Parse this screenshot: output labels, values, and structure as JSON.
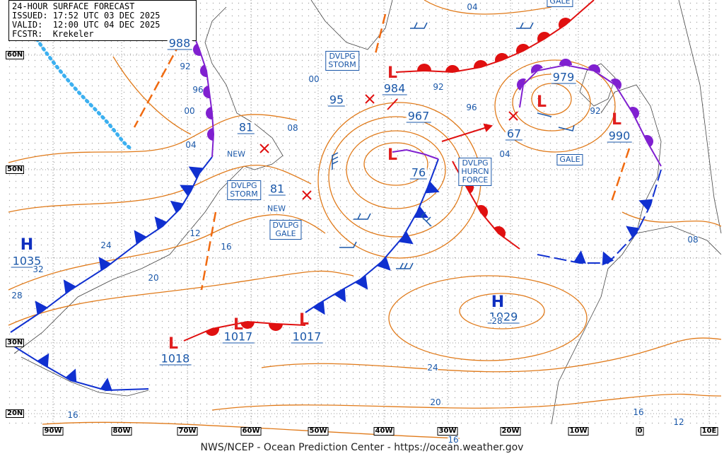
{
  "header": {
    "title": "24-HOUR SURFACE FORECAST",
    "issued": "ISSUED: 17:52 UTC 03 DEC 2025",
    "valid": "VALID:  12:00 UTC 04 DEC 2025",
    "forecaster": "FCSTR:  Krekeler"
  },
  "latitude_labels": [
    "60N",
    "50N",
    "30N",
    "20N"
  ],
  "longitude_labels": [
    "90W",
    "80W",
    "70W",
    "60W",
    "50W",
    "40W",
    "30W",
    "20W",
    "10W",
    "0",
    "10E"
  ],
  "pressure_centers": [
    "988",
    "81",
    "81",
    "984",
    "967",
    "95",
    "979",
    "990",
    "67",
    "1035",
    "1029",
    "1017",
    "1017",
    "1018",
    "76"
  ],
  "isobar_labels": [
    "04",
    "92",
    "96",
    "00",
    "04",
    "08",
    "00",
    "92",
    "96",
    "04",
    "92",
    "12",
    "16",
    "24",
    "32",
    "28",
    "20",
    "24",
    "20",
    "16",
    "16",
    "12",
    "08",
    "28",
    "16"
  ],
  "warnings": [
    [
      "DVLPG",
      "STORM"
    ],
    [
      "DVLPG",
      "STORM"
    ],
    [
      "DVLPG",
      "GALE"
    ],
    [
      "DVLPG",
      "HURCN",
      "FORCE"
    ],
    [
      "GALE"
    ],
    [
      "GALE"
    ]
  ],
  "new_labels": [
    "NEW",
    "NEW"
  ],
  "highs": [
    "H",
    "H"
  ],
  "lows": [
    "L",
    "L",
    "L",
    "L",
    "L",
    "L",
    "L"
  ],
  "footer": "NWS/NCEP - Ocean Prediction Center - https://ocean.weather.gov"
}
